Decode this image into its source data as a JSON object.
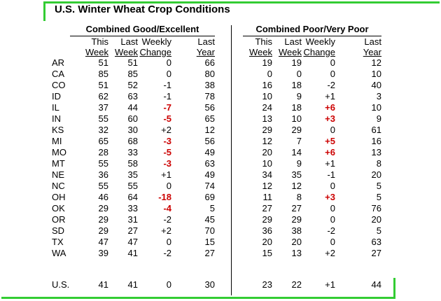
{
  "title": "U.S. Winter Wheat Crop Conditions",
  "sections": [
    {
      "label": "Combined Good/Excellent"
    },
    {
      "label": "Combined Poor/Very Poor"
    }
  ],
  "column_headers": {
    "line1": [
      "This",
      "Last",
      "Weekly",
      "Last"
    ],
    "line2": [
      "Week",
      "Week",
      "Change",
      "Year"
    ]
  },
  "colors": {
    "accent_green": "#33cc33",
    "change_highlight_red": "#cc0000",
    "text": "#000000",
    "background": "#ffffff"
  },
  "rows": [
    {
      "state": "AR",
      "good_excellent": [
        "51",
        "51",
        "0",
        "66"
      ],
      "poor_very_poor": [
        "19",
        "19",
        "0",
        "12"
      ]
    },
    {
      "state": "CA",
      "good_excellent": [
        "85",
        "85",
        "0",
        "80"
      ],
      "poor_very_poor": [
        "0",
        "0",
        "0",
        "10"
      ]
    },
    {
      "state": "CO",
      "good_excellent": [
        "51",
        "52",
        "-1",
        "38"
      ],
      "poor_very_poor": [
        "16",
        "18",
        "-2",
        "40"
      ]
    },
    {
      "state": "ID",
      "good_excellent": [
        "62",
        "63",
        "-1",
        "78"
      ],
      "poor_very_poor": [
        "10",
        "9",
        "+1",
        "3"
      ]
    },
    {
      "state": "IL",
      "good_excellent": [
        "37",
        "44",
        "-7",
        "56"
      ],
      "poor_very_poor": [
        "24",
        "18",
        "+6",
        "10"
      ]
    },
    {
      "state": "IN",
      "good_excellent": [
        "55",
        "60",
        "-5",
        "65"
      ],
      "poor_very_poor": [
        "13",
        "10",
        "+3",
        "9"
      ]
    },
    {
      "state": "KS",
      "good_excellent": [
        "32",
        "30",
        "+2",
        "12"
      ],
      "poor_very_poor": [
        "29",
        "29",
        "0",
        "61"
      ]
    },
    {
      "state": "MI",
      "good_excellent": [
        "65",
        "68",
        "-3",
        "56"
      ],
      "poor_very_poor": [
        "12",
        "7",
        "+5",
        "16"
      ]
    },
    {
      "state": "MO",
      "good_excellent": [
        "28",
        "33",
        "-5",
        "49"
      ],
      "poor_very_poor": [
        "20",
        "14",
        "+6",
        "13"
      ]
    },
    {
      "state": "MT",
      "good_excellent": [
        "55",
        "58",
        "-3",
        "63"
      ],
      "poor_very_poor": [
        "10",
        "9",
        "+1",
        "8"
      ]
    },
    {
      "state": "NE",
      "good_excellent": [
        "36",
        "35",
        "+1",
        "49"
      ],
      "poor_very_poor": [
        "34",
        "35",
        "-1",
        "20"
      ]
    },
    {
      "state": "NC",
      "good_excellent": [
        "55",
        "55",
        "0",
        "74"
      ],
      "poor_very_poor": [
        "12",
        "12",
        "0",
        "5"
      ]
    },
    {
      "state": "OH",
      "good_excellent": [
        "46",
        "64",
        "-18",
        "69"
      ],
      "poor_very_poor": [
        "11",
        "8",
        "+3",
        "5"
      ]
    },
    {
      "state": "OK",
      "good_excellent": [
        "29",
        "33",
        "-4",
        "5"
      ],
      "poor_very_poor": [
        "27",
        "27",
        "0",
        "76"
      ]
    },
    {
      "state": "OR",
      "good_excellent": [
        "29",
        "31",
        "-2",
        "45"
      ],
      "poor_very_poor": [
        "29",
        "29",
        "0",
        "20"
      ]
    },
    {
      "state": "SD",
      "good_excellent": [
        "29",
        "27",
        "+2",
        "70"
      ],
      "poor_very_poor": [
        "36",
        "38",
        "-2",
        "5"
      ]
    },
    {
      "state": "TX",
      "good_excellent": [
        "47",
        "47",
        "0",
        "15"
      ],
      "poor_very_poor": [
        "20",
        "20",
        "0",
        "63"
      ]
    },
    {
      "state": "WA",
      "good_excellent": [
        "39",
        "41",
        "-2",
        "27"
      ],
      "poor_very_poor": [
        "15",
        "13",
        "+2",
        "27"
      ]
    }
  ],
  "us_row": {
    "state": "U.S.",
    "good_excellent": [
      "41",
      "41",
      "0",
      "30"
    ],
    "poor_very_poor": [
      "23",
      "22",
      "+1",
      "44"
    ]
  }
}
